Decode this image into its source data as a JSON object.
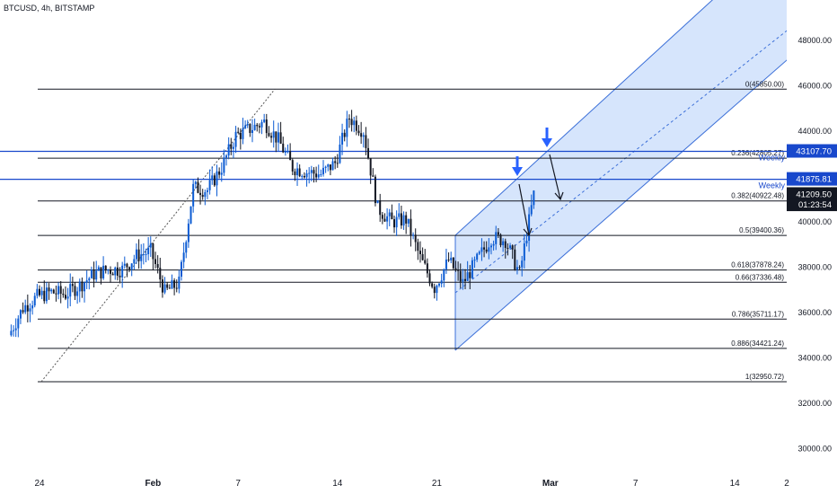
{
  "symbol_title": "BTCUSD, 4h, BITSTAMP",
  "chart_data": {
    "type": "candlestick",
    "title": "BTCUSD, 4h, BITSTAMP",
    "x_tick_labels": [
      "24",
      "Feb",
      "7",
      "14",
      "21",
      "Mar",
      "7",
      "14",
      "2"
    ],
    "y_tick_labels": [
      "30000.00",
      "32000.00",
      "34000.00",
      "36000.00",
      "38000.00",
      "40000.00",
      "44000.00",
      "46000.00",
      "48000.00"
    ],
    "ylim": [
      29300,
      49700
    ],
    "grid": false,
    "price_series_daily_closes": [
      {
        "date": "2022-01-22",
        "close": 35000
      },
      {
        "date": "2022-01-23",
        "close": 36200
      },
      {
        "date": "2022-01-24",
        "close": 36700
      },
      {
        "date": "2022-01-25",
        "close": 36900
      },
      {
        "date": "2022-01-26",
        "close": 36800
      },
      {
        "date": "2022-01-27",
        "close": 37200
      },
      {
        "date": "2022-01-28",
        "close": 37700
      },
      {
        "date": "2022-01-29",
        "close": 37900
      },
      {
        "date": "2022-01-30",
        "close": 37900
      },
      {
        "date": "2022-01-31",
        "close": 38500
      },
      {
        "date": "2022-02-01",
        "close": 38700
      },
      {
        "date": "2022-02-02",
        "close": 36900
      },
      {
        "date": "2022-02-03",
        "close": 37300
      },
      {
        "date": "2022-02-04",
        "close": 41500
      },
      {
        "date": "2022-02-05",
        "close": 41400
      },
      {
        "date": "2022-02-06",
        "close": 42400
      },
      {
        "date": "2022-02-07",
        "close": 43800
      },
      {
        "date": "2022-02-08",
        "close": 44100
      },
      {
        "date": "2022-02-09",
        "close": 44400
      },
      {
        "date": "2022-02-10",
        "close": 43600
      },
      {
        "date": "2022-02-11",
        "close": 42400
      },
      {
        "date": "2022-02-12",
        "close": 42200
      },
      {
        "date": "2022-02-13",
        "close": 42100
      },
      {
        "date": "2022-02-14",
        "close": 42600
      },
      {
        "date": "2022-02-15",
        "close": 44600
      },
      {
        "date": "2022-02-16",
        "close": 44000
      },
      {
        "date": "2022-02-17",
        "close": 40600
      },
      {
        "date": "2022-02-18",
        "close": 40000
      },
      {
        "date": "2022-02-19",
        "close": 40100
      },
      {
        "date": "2022-02-20",
        "close": 38400
      },
      {
        "date": "2022-02-21",
        "close": 37100
      },
      {
        "date": "2022-02-22",
        "close": 38300
      },
      {
        "date": "2022-02-23",
        "close": 37300
      },
      {
        "date": "2022-02-24",
        "close": 38300
      },
      {
        "date": "2022-02-25",
        "close": 39300
      },
      {
        "date": "2022-02-26",
        "close": 39200
      },
      {
        "date": "2022-02-27",
        "close": 37700
      },
      {
        "date": "2022-02-28",
        "close": 41200
      }
    ],
    "horizontal_lines": [
      {
        "label": "Weekly",
        "value": 43107.7,
        "color": "#1848cc"
      },
      {
        "label": "Weekly",
        "value": 41875.81,
        "color": "#1848cc"
      }
    ],
    "fib_levels": [
      {
        "label": "0(45850.00)",
        "value": 45850.0
      },
      {
        "label": "0.236(42805.27)",
        "value": 42805.27
      },
      {
        "label": "0.382(40922.48)",
        "value": 40922.48
      },
      {
        "label": "0.5(39400.36)",
        "value": 39400.36
      },
      {
        "label": "0.618(37878.24)",
        "value": 37878.24
      },
      {
        "label": "0.66(37336.48)",
        "value": 37336.48
      },
      {
        "label": "0.786(35711.17)",
        "value": 35711.17
      },
      {
        "label": "0.886(34421.24)",
        "value": 34421.24
      },
      {
        "label": "1(32950.72)",
        "value": 32950.72
      }
    ],
    "price_labels": [
      {
        "text": "43107.70",
        "value": 43107.7,
        "bg": "#1848cc",
        "fg": "#ffffff"
      },
      {
        "text": "41875.81",
        "value": 41875.81,
        "bg": "#1848cc",
        "fg": "#ffffff"
      },
      {
        "text": "41209.50",
        "value": 41209.5,
        "bg": "#131722",
        "fg": "#ffffff"
      },
      {
        "text": "01:23:54",
        "value": 40750,
        "bg": "#131722",
        "fg": "#ffffff"
      }
    ],
    "colors": {
      "up": "#0b5bd3",
      "down": "#131722",
      "fib": "#131722",
      "channel_fill": "#cfe0fb",
      "channel_line": "#3b6fd8",
      "arrow": "#2962ff"
    }
  }
}
